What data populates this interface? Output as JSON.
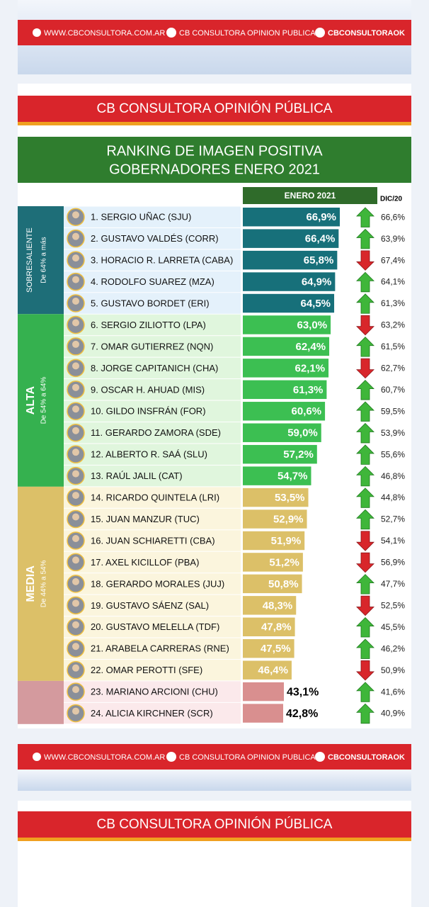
{
  "links": {
    "web": "WWW.CBCONSULTORA.COM.AR",
    "facebook": "CB CONSULTORA OPINION PUBLICA",
    "twitter": "CBCONSULTORAOK"
  },
  "banner": "CB CONSULTORA OPINIÓN PÚBLICA",
  "chart_data": {
    "type": "bar",
    "title": [
      "RANKING DE IMAGEN POSITIVA",
      "GOBERNADORES ENERO 2021"
    ],
    "current_label": "ENERO 2021",
    "previous_label": "DIC/20",
    "groups": [
      {
        "label": "SOBRESALIENTE",
        "range": "De 64% a más",
        "band_color": "#1e6e78",
        "bar_color": "#17707a",
        "row_color": "#e4f1fb",
        "labels_inside": true,
        "categories": [
          "1. SERGIO UÑAC (SJU)",
          "2. GUSTAVO VALDÉS  (CORR)",
          "3. HORACIO R. LARRETA (CABA)",
          "4. RODOLFO SUAREZ (MZA)",
          "5. GUSTAVO BORDET (ERI)"
        ],
        "values": [
          66.9,
          66.4,
          65.8,
          64.9,
          64.5
        ],
        "value_labels": [
          "66,9%",
          "66,4%",
          "65,8%",
          "64,9%",
          "64,5%"
        ],
        "previous": [
          66.6,
          63.9,
          67.4,
          64.1,
          61.3
        ],
        "previous_labels": [
          "66,6%",
          "63,9%",
          "67,4%",
          "64,1%",
          "61,3%"
        ]
      },
      {
        "label": "ALTA",
        "range": "De 54% a 64%",
        "band_color": "#35b14f",
        "bar_color": "#3cbf52",
        "row_color": "#e0f6dd",
        "labels_inside": true,
        "categories": [
          "6. SERGIO ZILIOTTO (LPA)",
          "7. OMAR GUTIERREZ (NQN)",
          "8. JORGE CAPITANICH (CHA)",
          "9. OSCAR H. AHUAD  (MIS)",
          "10. GILDO INSFRÁN (FOR)",
          "11. GERARDO ZAMORA (SDE)",
          "12. ALBERTO R. SAÁ (SLU)",
          "13. RAÚL JALIL (CAT)"
        ],
        "values": [
          63.0,
          62.4,
          62.1,
          61.3,
          60.6,
          59.0,
          57.2,
          54.7
        ],
        "value_labels": [
          "63,0%",
          "62,4%",
          "62,1%",
          "61,3%",
          "60,6%",
          "59,0%",
          "57,2%",
          "54,7%"
        ],
        "previous": [
          63.2,
          61.5,
          62.7,
          60.7,
          59.5,
          53.9,
          55.6,
          46.8
        ],
        "previous_labels": [
          "63,2%",
          "61,5%",
          "62,7%",
          "60,7%",
          "59,5%",
          "53,9%",
          "55,6%",
          "46,8%"
        ]
      },
      {
        "label": "MEDIA",
        "range": "De 44% a 54%",
        "band_color": "#dcc068",
        "bar_color": "#dcc068",
        "row_color": "#fbf5dd",
        "labels_inside": true,
        "categories": [
          "14. RICARDO QUINTELA (LRI)",
          "15. JUAN MANZUR (TUC)",
          "16. JUAN SCHIARETTI (CBA)",
          "17.  AXEL KICILLOF (PBA)",
          "18. GERARDO MORALES (JUJ)",
          "19. GUSTAVO SÁENZ (SAL)",
          "20. GUSTAVO MELELLA (TDF)",
          "21. ARABELA CARRERAS (RNE)",
          "22. OMAR PEROTTI (SFE)"
        ],
        "values": [
          53.5,
          52.9,
          51.9,
          51.2,
          50.8,
          48.3,
          47.8,
          47.5,
          46.4
        ],
        "value_labels": [
          "53,5%",
          "52,9%",
          "51,9%",
          "51,2%",
          "50,8%",
          "48,3%",
          "47,8%",
          "47,5%",
          "46,4%"
        ],
        "previous": [
          44.8,
          52.7,
          54.1,
          56.9,
          47.7,
          52.5,
          45.5,
          46.2,
          50.9
        ],
        "previous_labels": [
          "44,8%",
          "52,7%",
          "54,1%",
          "56,9%",
          "47,7%",
          "52,5%",
          "45,5%",
          "46,2%",
          "50,9%"
        ]
      },
      {
        "band_color": "#d49a9e",
        "bar_color": "#d98f8f",
        "row_color": "#fbe9eb",
        "labels_inside": false,
        "categories": [
          "23. MARIANO ARCIONI (CHU)",
          "24. ALICIA KIRCHNER (SCR)"
        ],
        "values": [
          43.1,
          42.8
        ],
        "value_labels": [
          "43,1%",
          "42,8%"
        ],
        "previous": [
          41.6,
          40.9
        ],
        "previous_labels": [
          "41,6%",
          "40,9%"
        ]
      }
    ]
  }
}
